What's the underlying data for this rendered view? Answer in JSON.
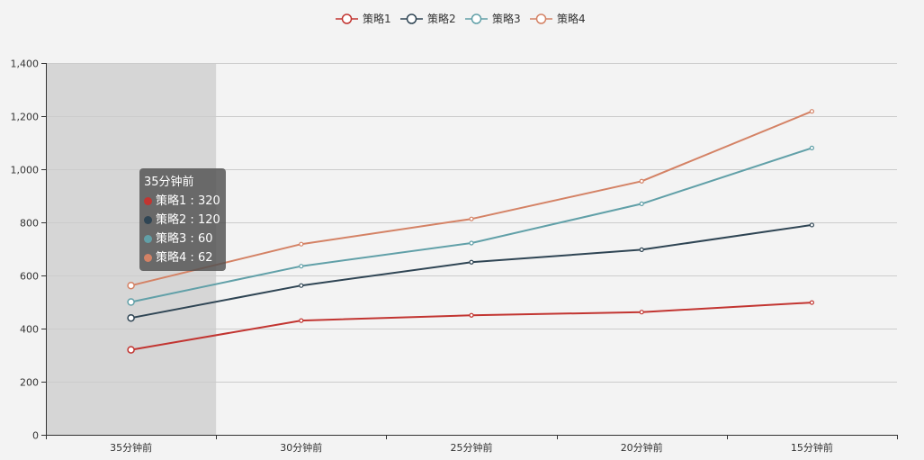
{
  "chart_data": {
    "type": "line",
    "title": "",
    "xlabel": "",
    "ylabel": "",
    "categories": [
      "35分钟前",
      "30分钟前",
      "25分钟前",
      "20分钟前",
      "15分钟前"
    ],
    "ylim": [
      0,
      1400
    ],
    "yticks": [
      0,
      200,
      400,
      600,
      800,
      1000,
      1200,
      1400
    ],
    "ytick_labels": [
      "0",
      "200",
      "400",
      "600",
      "800",
      "1,000",
      "1,200",
      "1,400"
    ],
    "grid": true,
    "legend_position": "top-center",
    "highlighted_category": "35分钟前",
    "series": [
      {
        "name": "策略1",
        "color": "#c23531",
        "values": [
          320,
          430,
          450,
          462,
          498
        ]
      },
      {
        "name": "策略2",
        "color": "#2f4554",
        "values": [
          440,
          562,
          650,
          697,
          790
        ]
      },
      {
        "name": "策略3",
        "color": "#61a0a8",
        "values": [
          500,
          635,
          722,
          870,
          1080
        ]
      },
      {
        "name": "策略4",
        "color": "#d48265",
        "values": [
          562,
          718,
          813,
          955,
          1218
        ]
      }
    ]
  },
  "tooltip": {
    "title": "35分钟前",
    "rows": [
      {
        "name": "策略1",
        "value": "320",
        "color": "#c23531"
      },
      {
        "name": "策略2",
        "value": "120",
        "color": "#2f4554"
      },
      {
        "name": "策略3",
        "value": "60",
        "color": "#61a0a8"
      },
      {
        "name": "策略4",
        "value": "62",
        "color": "#d48265"
      }
    ]
  }
}
